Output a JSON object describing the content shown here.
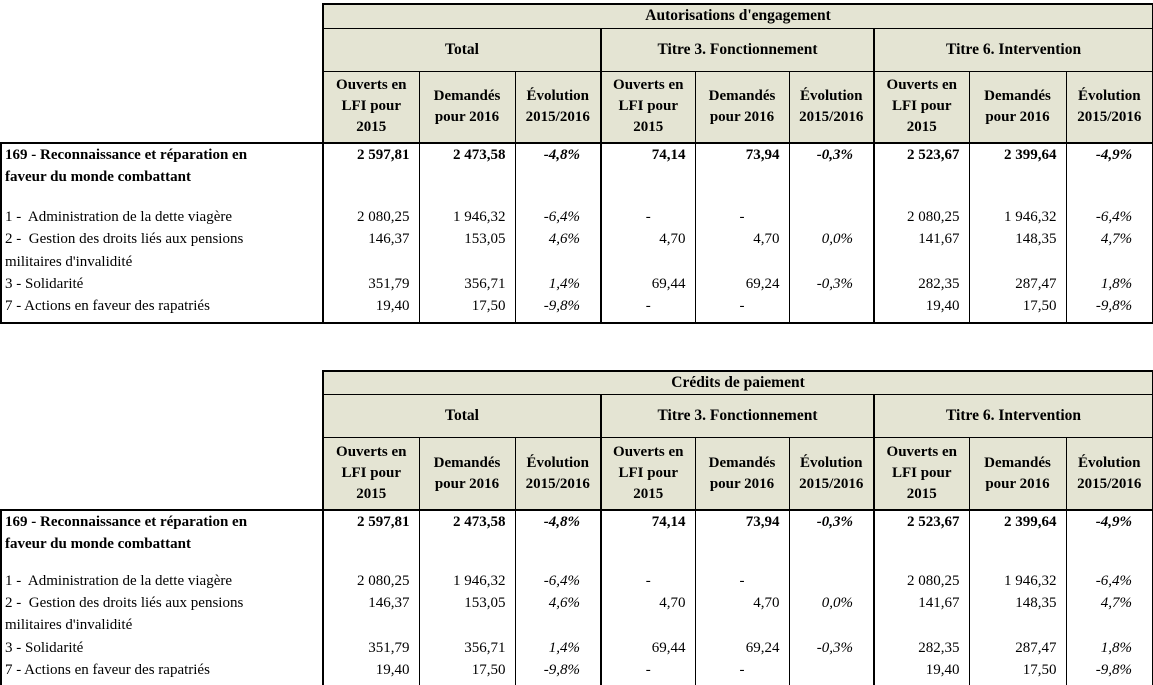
{
  "colors": {
    "header_bg": "#E4E4D3",
    "border": "#000000",
    "text": "#000000",
    "page_bg": "#FFFFFF"
  },
  "tables": [
    {
      "title": "Autorisations d'engagement",
      "groups": [
        "Total",
        "Titre 3. Fonctionnement",
        "Titre 6. Intervention"
      ],
      "column_headers": [
        "Ouverts en LFI pour 2015",
        "Demandés pour 2016",
        "Évolution 2015/2016"
      ],
      "rows": [
        {
          "label": "169 - Reconnaissance et réparation en\nfaveur du monde combattant",
          "bold": true,
          "spacer_after": true,
          "values": [
            "2 597,81",
            "2 473,58",
            "-4,8%",
            "74,14",
            "73,94",
            "-0,3%",
            "2 523,67",
            "2 399,64",
            "-4,9%"
          ]
        },
        {
          "label": "1 -  Administration de la dette viagère",
          "bold": false,
          "spacer_after": false,
          "values": [
            "2 080,25",
            "1 946,32",
            "-6,4%",
            "-",
            "-",
            "",
            "2 080,25",
            "1 946,32",
            "-6,4%"
          ]
        },
        {
          "label": "2 -  Gestion des droits liés aux pensions\nmilitaires d'invalidité",
          "bold": false,
          "spacer_after": false,
          "values": [
            "146,37",
            "153,05",
            "4,6%",
            "4,70",
            "4,70",
            "0,0%",
            "141,67",
            "148,35",
            "4,7%"
          ]
        },
        {
          "label": "3 - Solidarité",
          "bold": false,
          "spacer_after": false,
          "values": [
            "351,79",
            "356,71",
            "1,4%",
            "69,44",
            "69,24",
            "-0,3%",
            "282,35",
            "287,47",
            "1,8%"
          ]
        },
        {
          "label": "7 - Actions en faveur des rapatriés",
          "bold": false,
          "spacer_after": false,
          "values": [
            "19,40",
            "17,50",
            "-9,8%",
            "-",
            "-",
            "",
            "19,40",
            "17,50",
            "-9,8%"
          ]
        }
      ]
    },
    {
      "title": "Crédits de paiement",
      "groups": [
        "Total",
        "Titre 3. Fonctionnement",
        "Titre 6. Intervention"
      ],
      "column_headers": [
        "Ouverts en LFI pour 2015",
        "Demandés pour 2016",
        "Évolution 2015/2016"
      ],
      "rows": [
        {
          "label": "169 - Reconnaissance et réparation en\nfaveur du monde combattant",
          "bold": true,
          "spacer_after": true,
          "values": [
            "2 597,81",
            "2 473,58",
            "-4,8%",
            "74,14",
            "73,94",
            "-0,3%",
            "2 523,67",
            "2 399,64",
            "-4,9%"
          ]
        },
        {
          "label": "1 -  Administration de la dette viagère",
          "bold": false,
          "spacer_after": false,
          "values": [
            "2 080,25",
            "1 946,32",
            "-6,4%",
            "-",
            "-",
            "",
            "2 080,25",
            "1 946,32",
            "-6,4%"
          ]
        },
        {
          "label": "2 -  Gestion des droits liés aux pensions\nmilitaires d'invalidité",
          "bold": false,
          "spacer_after": false,
          "values": [
            "146,37",
            "153,05",
            "4,6%",
            "4,70",
            "4,70",
            "0,0%",
            "141,67",
            "148,35",
            "4,7%"
          ]
        },
        {
          "label": "3 - Solidarité",
          "bold": false,
          "spacer_after": false,
          "values": [
            "351,79",
            "356,71",
            "1,4%",
            "69,44",
            "69,24",
            "-0,3%",
            "282,35",
            "287,47",
            "1,8%"
          ]
        },
        {
          "label": "7 - Actions en faveur des rapatriés",
          "bold": false,
          "spacer_after": false,
          "values": [
            "19,40",
            "17,50",
            "-9,8%",
            "-",
            "-",
            "",
            "19,40",
            "17,50",
            "-9,8%"
          ]
        }
      ]
    }
  ]
}
